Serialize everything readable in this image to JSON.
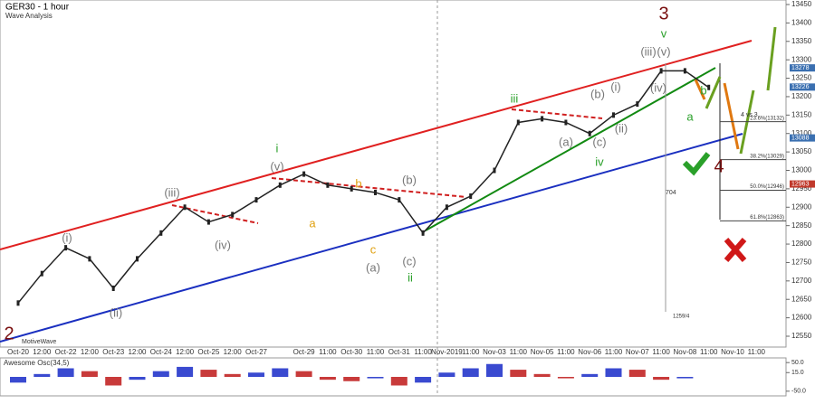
{
  "chart_data": {
    "type": "line",
    "title": "GER30 - 1 hour",
    "subtitle": "Wave Analysis",
    "categories": [
      "Oct-20",
      "12:00",
      "Oct-22",
      "12:00",
      "Oct-23",
      "12:00",
      "Oct-24",
      "12:00",
      "Oct-25",
      "12:00",
      "Oct-27",
      null,
      "Oct-29",
      "11:00",
      "Oct-30",
      "11:00",
      "Oct-31",
      "11:00",
      "Nov-2019",
      "11:00",
      "Nov-03",
      "11:00",
      "Nov-05",
      "11:00",
      "Nov-06",
      "11:00",
      "Nov-07",
      "11:00",
      "Nov-08",
      "11:00",
      "Nov-10",
      "11:00"
    ],
    "series": [
      {
        "name": "GER30",
        "color": "#222222",
        "values": [
          12640,
          12720,
          12790,
          12760,
          12680,
          12760,
          12830,
          12900,
          12860,
          12880,
          12920,
          12960,
          12990,
          12960,
          12950,
          12940,
          12920,
          12830,
          12900,
          12930,
          13000,
          13130,
          13140,
          13130,
          13100,
          13150,
          13180,
          13270,
          13270,
          13225,
          null,
          null
        ]
      }
    ],
    "ylim": [
      12550,
      13450
    ],
    "yticks": [
      12550,
      12600,
      12650,
      12700,
      12750,
      12800,
      12850,
      12900,
      12950,
      13000,
      13050,
      13100,
      13150,
      13200,
      13250,
      13300,
      13350,
      13400,
      13450
    ],
    "price_tags": [
      {
        "value": 13278,
        "color": "#3a6fb0"
      },
      {
        "value": 13226,
        "color": "#3a6fb0"
      },
      {
        "value": 13088,
        "color": "#3a6fb0"
      },
      {
        "value": 12963,
        "color": "#c0392b"
      }
    ],
    "fib_levels": [
      {
        "value": 13132,
        "label": "23.6%(13132)"
      },
      {
        "value": 13029,
        "label": "38.2%(13029)"
      },
      {
        "value": 12946,
        "label": "50.0%(12946)"
      },
      {
        "value": 12863,
        "label": "61.8%(12863)"
      }
    ],
    "wave_labels": [
      "2",
      "(i)",
      "(ii)",
      "(iii)",
      "(iv)",
      "i",
      "(v)",
      "a",
      "c",
      "(a)",
      "b",
      "(b)",
      "(c)",
      "ii",
      "iii",
      "(a)",
      "(b)",
      "(c)",
      "iv",
      "(i)",
      "(ii)",
      "(iii)",
      "(v)",
      "v",
      "3",
      "(iv)",
      "a",
      "b",
      "4"
    ],
    "notes": [
      "4 vs 3",
      "704",
      "1259/4",
      "MotiveWave"
    ],
    "oscillator": {
      "title": "Awesome Osc(34,5)",
      "values": [
        -20,
        10,
        30,
        20,
        -30,
        -10,
        20,
        35,
        25,
        10,
        15,
        30,
        20,
        -10,
        -15,
        -5,
        -30,
        -20,
        15,
        30,
        45,
        25,
        10,
        -5,
        10,
        30,
        25,
        -10,
        -5,
        null,
        null,
        null
      ],
      "ylim": [
        -60,
        60
      ],
      "yticks": [
        {
          "value": 50,
          "label": "50.0"
        },
        {
          "value": 15,
          "label": "15.0"
        },
        {
          "value": -50,
          "label": "-50.0"
        }
      ]
    }
  }
}
